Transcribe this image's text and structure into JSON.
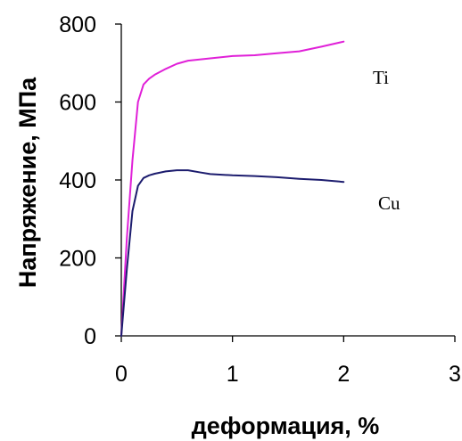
{
  "chart_data": {
    "type": "line",
    "title": "",
    "xlabel": "деформация, %",
    "ylabel": "Напряжение, МПа",
    "xlim": [
      0,
      3
    ],
    "ylim": [
      0,
      800
    ],
    "xticks": [
      0,
      1,
      2,
      3
    ],
    "yticks": [
      0,
      200,
      400,
      600,
      800
    ],
    "xtick_labels": [
      "0",
      "1",
      "2",
      "3"
    ],
    "ytick_labels": [
      "0",
      "200",
      "400",
      "600",
      "800"
    ],
    "grid": false,
    "legend": "none",
    "series": [
      {
        "name": "Ti",
        "color": "#e020d8",
        "x": [
          0,
          0.05,
          0.1,
          0.15,
          0.2,
          0.25,
          0.3,
          0.4,
          0.5,
          0.6,
          0.8,
          1.0,
          1.2,
          1.4,
          1.6,
          1.8,
          2.0
        ],
        "y": [
          0,
          250,
          450,
          600,
          645,
          660,
          670,
          685,
          698,
          706,
          712,
          718,
          720,
          725,
          730,
          742,
          755
        ]
      },
      {
        "name": "Cu",
        "color": "#1c1c6e",
        "x": [
          0,
          0.05,
          0.1,
          0.15,
          0.2,
          0.25,
          0.3,
          0.4,
          0.5,
          0.6,
          0.7,
          0.8,
          1.0,
          1.2,
          1.4,
          1.6,
          1.8,
          2.0
        ],
        "y": [
          0,
          170,
          320,
          385,
          405,
          412,
          416,
          422,
          425,
          425,
          420,
          415,
          412,
          410,
          407,
          403,
          400,
          395
        ]
      }
    ],
    "annotations": [
      {
        "text": "Ti",
        "series": "Ti"
      },
      {
        "text": "Cu",
        "series": "Cu"
      }
    ]
  }
}
